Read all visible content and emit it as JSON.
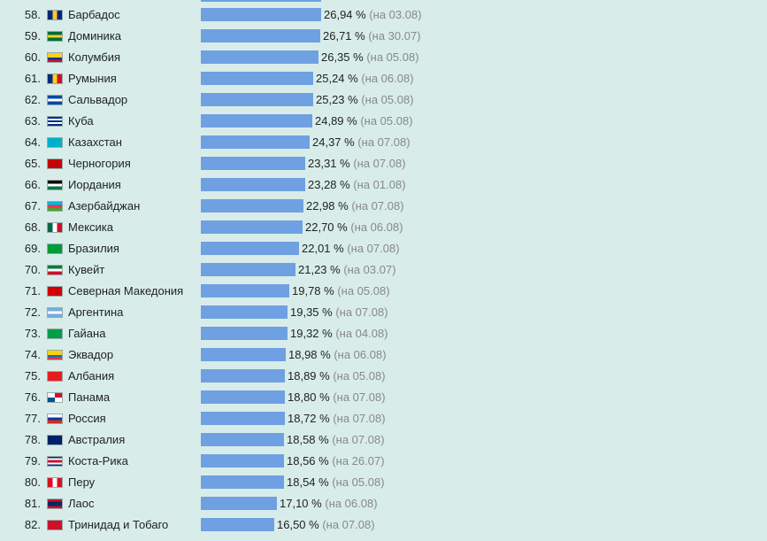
{
  "chart_data": {
    "type": "bar",
    "orientation": "horizontal",
    "value_unit": "%",
    "date_prefix": "на",
    "rows": [
      {
        "rank": "58.",
        "country": "Барбадос",
        "value": 26.94,
        "value_label": "26,94 %",
        "date": "(на 03.08)",
        "flag": [
          "#00267f",
          "#ffc726",
          "#00267f"
        ],
        "flag_dir": "v"
      },
      {
        "rank": "59.",
        "country": "Доминика",
        "value": 26.71,
        "value_label": "26,71 %",
        "date": "(на 30.07)",
        "flag": [
          "#006b3f",
          "#fcd116",
          "#006b3f"
        ],
        "flag_dir": "h"
      },
      {
        "rank": "60.",
        "country": "Колумбия",
        "value": 26.35,
        "value_label": "26,35 %",
        "date": "(на 05.08)",
        "flag": [
          "#fcd116",
          "#fcd116",
          "#003893",
          "#ce1126"
        ],
        "flag_dir": "h"
      },
      {
        "rank": "61.",
        "country": "Румыния",
        "value": 25.24,
        "value_label": "25,24 %",
        "date": "(на 06.08)",
        "flag": [
          "#002b7f",
          "#fcd116",
          "#ce1126"
        ],
        "flag_dir": "v"
      },
      {
        "rank": "62.",
        "country": "Сальвадор",
        "value": 25.23,
        "value_label": "25,23 %",
        "date": "(на 05.08)",
        "flag": [
          "#0047ab",
          "#ffffff",
          "#0047ab"
        ],
        "flag_dir": "h"
      },
      {
        "rank": "63.",
        "country": "Куба",
        "value": 24.89,
        "value_label": "24,89 %",
        "date": "(на 05.08)",
        "flag": [
          "#002a8f",
          "#ffffff",
          "#002a8f",
          "#ffffff",
          "#002a8f"
        ],
        "flag_dir": "h"
      },
      {
        "rank": "64.",
        "country": "Казахстан",
        "value": 24.37,
        "value_label": "24,37 %",
        "date": "(на 07.08)",
        "flag": [
          "#00afca"
        ],
        "flag_dir": "h"
      },
      {
        "rank": "65.",
        "country": "Черногория",
        "value": 23.31,
        "value_label": "23,31 %",
        "date": "(на 07.08)",
        "flag": [
          "#c40308"
        ],
        "flag_dir": "h"
      },
      {
        "rank": "66.",
        "country": "Иордания",
        "value": 23.28,
        "value_label": "23,28 %",
        "date": "(на 01.08)",
        "flag": [
          "#000000",
          "#ffffff",
          "#007a3d"
        ],
        "flag_dir": "h"
      },
      {
        "rank": "67.",
        "country": "Азербайджан",
        "value": 22.98,
        "value_label": "22,98 %",
        "date": "(на 07.08)",
        "flag": [
          "#00b5e2",
          "#ef3340",
          "#509e2f"
        ],
        "flag_dir": "h"
      },
      {
        "rank": "68.",
        "country": "Мексика",
        "value": 22.7,
        "value_label": "22,70 %",
        "date": "(на 06.08)",
        "flag": [
          "#006847",
          "#ffffff",
          "#ce1126"
        ],
        "flag_dir": "v"
      },
      {
        "rank": "69.",
        "country": "Бразилия",
        "value": 22.01,
        "value_label": "22,01 %",
        "date": "(на 07.08)",
        "flag": [
          "#009c3b"
        ],
        "flag_dir": "h"
      },
      {
        "rank": "70.",
        "country": "Кувейт",
        "value": 21.23,
        "value_label": "21,23 %",
        "date": "(на 03.07)",
        "flag": [
          "#007a3d",
          "#ffffff",
          "#ce1126"
        ],
        "flag_dir": "h"
      },
      {
        "rank": "71.",
        "country": "Северная Македония",
        "value": 19.78,
        "value_label": "19,78 %",
        "date": "(на 05.08)",
        "flag": [
          "#d20000"
        ],
        "flag_dir": "h"
      },
      {
        "rank": "72.",
        "country": "Аргентина",
        "value": 19.35,
        "value_label": "19,35 %",
        "date": "(на 07.08)",
        "flag": [
          "#74acdf",
          "#ffffff",
          "#74acdf"
        ],
        "flag_dir": "h"
      },
      {
        "rank": "73.",
        "country": "Гайана",
        "value": 19.32,
        "value_label": "19,32 %",
        "date": "(на 04.08)",
        "flag": [
          "#009e49"
        ],
        "flag_dir": "h"
      },
      {
        "rank": "74.",
        "country": "Эквадор",
        "value": 18.98,
        "value_label": "18,98 %",
        "date": "(на 06.08)",
        "flag": [
          "#ffd100",
          "#ffd100",
          "#0072ce",
          "#ef3340"
        ],
        "flag_dir": "h"
      },
      {
        "rank": "75.",
        "country": "Албания",
        "value": 18.89,
        "value_label": "18,89 %",
        "date": "(на 05.08)",
        "flag": [
          "#e41e20"
        ],
        "flag_dir": "h"
      },
      {
        "rank": "76.",
        "country": "Панама",
        "value": 18.8,
        "value_label": "18,80 %",
        "date": "(на 07.08)",
        "flag": [
          "#ffffff",
          "#d21034",
          "#005293",
          "#ffffff"
        ],
        "flag_dir": "q"
      },
      {
        "rank": "77.",
        "country": "Россия",
        "value": 18.72,
        "value_label": "18,72 %",
        "date": "(на 07.08)",
        "flag": [
          "#ffffff",
          "#0039a6",
          "#d52b1e"
        ],
        "flag_dir": "h"
      },
      {
        "rank": "78.",
        "country": "Австралия",
        "value": 18.58,
        "value_label": "18,58 %",
        "date": "(на 07.08)",
        "flag": [
          "#012169"
        ],
        "flag_dir": "h"
      },
      {
        "rank": "79.",
        "country": "Коста-Рика",
        "value": 18.56,
        "value_label": "18,56 %",
        "date": "(на 26.07)",
        "flag": [
          "#002b7f",
          "#ffffff",
          "#ce1126",
          "#ce1126",
          "#ffffff",
          "#002b7f"
        ],
        "flag_dir": "h"
      },
      {
        "rank": "80.",
        "country": "Перу",
        "value": 18.54,
        "value_label": "18,54 %",
        "date": "(на 05.08)",
        "flag": [
          "#d91023",
          "#ffffff",
          "#d91023"
        ],
        "flag_dir": "v"
      },
      {
        "rank": "81.",
        "country": "Лаос",
        "value": 17.1,
        "value_label": "17,10 %",
        "date": "(на 06.08)",
        "flag": [
          "#ce1126",
          "#002868",
          "#002868",
          "#ce1126"
        ],
        "flag_dir": "h"
      },
      {
        "rank": "82.",
        "country": "Тринидад и Тобаго",
        "value": 16.5,
        "value_label": "16,50 %",
        "date": "(на 07.08)",
        "flag": [
          "#ce1126"
        ],
        "flag_dir": "h"
      }
    ],
    "bar_color": "#6fa0e2",
    "background": "#d8edea"
  }
}
